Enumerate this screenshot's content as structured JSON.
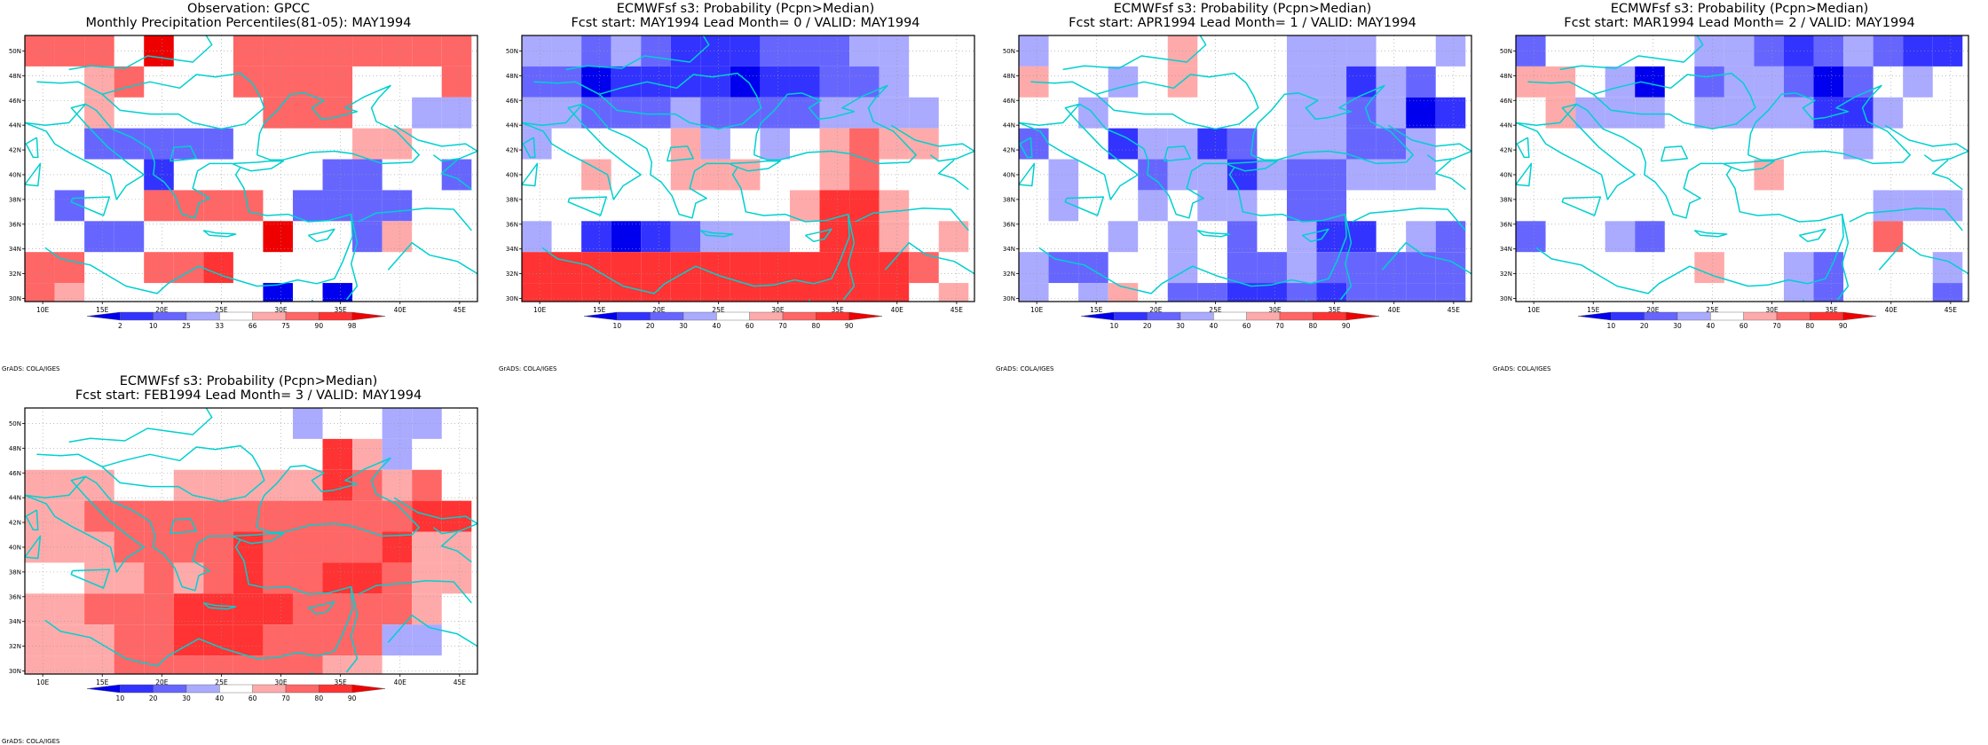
{
  "colors": {
    "neg": [
      "#0000ee",
      "#3333ff",
      "#6666ff",
      "#aaaaff"
    ],
    "pos": [
      "#ffaaaa",
      "#ff6666",
      "#ff3333",
      "#ee0000"
    ],
    "coast": "#00d0d0",
    "grid": "#999999"
  },
  "credit": "GrADS: COLA/IGES",
  "chart_data": [
    {
      "type": "heatmap",
      "title": "Observation: GPCC",
      "subtitle": "Monthly Precipitation Percentiles(81-05): MAY1994",
      "lon_ticks": [
        "10E",
        "15E",
        "20E",
        "25E",
        "30E",
        "35E",
        "40E",
        "45E"
      ],
      "lat_ticks": [
        "30N",
        "32N",
        "34N",
        "36N",
        "38N",
        "40N",
        "42N",
        "44N",
        "46N",
        "48N",
        "50N"
      ],
      "colorbar_labels": [
        "2",
        "10",
        "25",
        "33",
        "66",
        "75",
        "90",
        "98"
      ],
      "x_range": [
        8.5,
        46.5
      ],
      "y_range": [
        29.75,
        51.25
      ],
      "cell_size_deg": 2.5,
      "grid_note": "category levels: -4..-1 = below-normal classes (blue), 0 = white, 1..4 = above-normal classes (red)",
      "grid": [
        [
          2,
          2,
          2,
          0,
          4,
          0,
          0,
          2,
          2,
          2,
          2,
          2,
          2,
          2,
          2
        ],
        [
          0,
          0,
          1,
          2,
          0,
          0,
          0,
          2,
          2,
          2,
          2,
          0,
          0,
          0,
          2
        ],
        [
          0,
          0,
          1,
          0,
          0,
          0,
          0,
          0,
          2,
          2,
          2,
          0,
          0,
          -1,
          -1
        ],
        [
          0,
          0,
          -2,
          -2,
          -2,
          -2,
          -2,
          0,
          0,
          0,
          0,
          1,
          1,
          0,
          0
        ],
        [
          0,
          0,
          0,
          0,
          -3,
          0,
          0,
          0,
          0,
          0,
          -2,
          -2,
          0,
          0,
          -2
        ],
        [
          0,
          -2,
          0,
          0,
          2,
          2,
          2,
          2,
          0,
          -2,
          -2,
          -2,
          -2,
          0,
          0
        ],
        [
          0,
          0,
          -2,
          -2,
          0,
          0,
          0,
          0,
          4,
          0,
          0,
          -2,
          1,
          0,
          0
        ],
        [
          2,
          2,
          0,
          0,
          2,
          2,
          3,
          0,
          0,
          0,
          0,
          0,
          0,
          0,
          0
        ],
        [
          2,
          1,
          0,
          0,
          0,
          0,
          0,
          0,
          -4,
          0,
          -4,
          0,
          0,
          0,
          0
        ]
      ]
    },
    {
      "type": "heatmap",
      "title": "ECMWFsf s3: Probability (Pcpn>Median)",
      "subtitle": "Fcst start: MAY1994   Lead Month= 0 / VALID: MAY1994",
      "lon_ticks": [
        "10E",
        "15E",
        "20E",
        "25E",
        "30E",
        "35E",
        "40E",
        "45E"
      ],
      "lat_ticks": [
        "30N",
        "32N",
        "34N",
        "36N",
        "38N",
        "40N",
        "42N",
        "44N",
        "46N",
        "48N",
        "50N"
      ],
      "colorbar_labels": [
        "10",
        "20",
        "30",
        "40",
        "60",
        "70",
        "80",
        "90"
      ],
      "x_range": [
        8.5,
        46.5
      ],
      "y_range": [
        29.75,
        51.25
      ],
      "cell_size_deg": 2.5,
      "grid": [
        [
          -1,
          -1,
          -2,
          -1,
          -2,
          -3,
          -3,
          -3,
          -2,
          -2,
          -2,
          -1,
          -1,
          0,
          0
        ],
        [
          -2,
          -2,
          -4,
          -3,
          -3,
          -3,
          -3,
          -4,
          -3,
          -3,
          -2,
          -2,
          -1,
          0,
          0
        ],
        [
          -1,
          -1,
          -2,
          -2,
          -2,
          -1,
          -2,
          -2,
          -2,
          -2,
          -1,
          -1,
          -1,
          -1,
          0
        ],
        [
          -1,
          0,
          0,
          0,
          0,
          1,
          -1,
          0,
          -1,
          0,
          1,
          2,
          1,
          1,
          0
        ],
        [
          0,
          0,
          1,
          0,
          0,
          1,
          1,
          1,
          0,
          0,
          1,
          2,
          0,
          0,
          0
        ],
        [
          0,
          0,
          0,
          0,
          0,
          0,
          0,
          0,
          0,
          1,
          3,
          3,
          1,
          0,
          0
        ],
        [
          -1,
          0,
          -3,
          -4,
          -3,
          -2,
          -1,
          -1,
          -1,
          0,
          3,
          3,
          1,
          0,
          1
        ],
        [
          3,
          3,
          3,
          3,
          3,
          3,
          3,
          3,
          3,
          3,
          3,
          3,
          3,
          2,
          0
        ],
        [
          3,
          3,
          3,
          3,
          3,
          3,
          3,
          3,
          3,
          3,
          3,
          3,
          3,
          0,
          1
        ]
      ]
    },
    {
      "type": "heatmap",
      "title": "ECMWFsf s3: Probability (Pcpn>Median)",
      "subtitle": "Fcst start: APR1994   Lead Month= 1 / VALID: MAY1994",
      "lon_ticks": [
        "10E",
        "15E",
        "20E",
        "25E",
        "30E",
        "35E",
        "40E",
        "45E"
      ],
      "lat_ticks": [
        "30N",
        "32N",
        "34N",
        "36N",
        "38N",
        "40N",
        "42N",
        "44N",
        "46N",
        "48N",
        "50N"
      ],
      "colorbar_labels": [
        "10",
        "20",
        "30",
        "40",
        "60",
        "70",
        "80",
        "90"
      ],
      "x_range": [
        8.5,
        46.5
      ],
      "y_range": [
        29.75,
        51.25
      ],
      "cell_size_deg": 2.5,
      "grid": [
        [
          -1,
          0,
          0,
          0,
          0,
          1,
          0,
          0,
          0,
          -1,
          -1,
          -1,
          0,
          0,
          -1
        ],
        [
          1,
          0,
          0,
          -1,
          0,
          1,
          0,
          0,
          0,
          -1,
          -1,
          -3,
          -1,
          -2,
          0
        ],
        [
          0,
          0,
          -1,
          0,
          0,
          0,
          0,
          0,
          0,
          -1,
          -1,
          -2,
          -1,
          -4,
          -3
        ],
        [
          -2,
          0,
          0,
          -3,
          -1,
          -1,
          -3,
          -2,
          0,
          -1,
          -1,
          -2,
          -2,
          -1,
          0
        ],
        [
          0,
          -1,
          0,
          0,
          -2,
          -1,
          -1,
          -3,
          -1,
          -2,
          -2,
          -1,
          -1,
          -1,
          0
        ],
        [
          0,
          -1,
          0,
          0,
          -1,
          0,
          -1,
          -1,
          0,
          -2,
          -2,
          0,
          0,
          0,
          0
        ],
        [
          0,
          0,
          0,
          -1,
          0,
          -1,
          0,
          -2,
          0,
          -1,
          -3,
          -3,
          0,
          -1,
          -2
        ],
        [
          -1,
          -2,
          -2,
          0,
          0,
          -1,
          0,
          -2,
          -2,
          -1,
          -2,
          -2,
          -2,
          -2,
          -2
        ],
        [
          -1,
          0,
          -1,
          1,
          0,
          -2,
          -2,
          -3,
          -3,
          -2,
          -3,
          -2,
          -2,
          -2,
          -2
        ]
      ]
    },
    {
      "type": "heatmap",
      "title": "ECMWFsf s3: Probability (Pcpn>Median)",
      "subtitle": "Fcst start: MAR1994   Lead Month= 2 / VALID: MAY1994",
      "lon_ticks": [
        "10E",
        "15E",
        "20E",
        "25E",
        "30E",
        "35E",
        "40E",
        "45E"
      ],
      "lat_ticks": [
        "30N",
        "32N",
        "34N",
        "36N",
        "38N",
        "40N",
        "42N",
        "44N",
        "46N",
        "48N",
        "50N"
      ],
      "colorbar_labels": [
        "10",
        "20",
        "30",
        "40",
        "60",
        "70",
        "80",
        "90"
      ],
      "x_range": [
        8.5,
        46.5
      ],
      "y_range": [
        29.75,
        51.25
      ],
      "cell_size_deg": 2.5,
      "grid": [
        [
          -2,
          0,
          0,
          0,
          0,
          0,
          -1,
          -1,
          -2,
          -3,
          -2,
          -1,
          -2,
          -3,
          -3
        ],
        [
          1,
          1,
          0,
          -1,
          -4,
          0,
          -2,
          -1,
          -1,
          -2,
          -4,
          -2,
          0,
          -1,
          0
        ],
        [
          0,
          1,
          -1,
          -1,
          -1,
          0,
          -1,
          -1,
          -1,
          -1,
          -3,
          -3,
          -1,
          0,
          0
        ],
        [
          0,
          0,
          0,
          0,
          0,
          0,
          0,
          0,
          0,
          0,
          0,
          -1,
          0,
          0,
          0
        ],
        [
          0,
          0,
          0,
          0,
          0,
          0,
          0,
          0,
          1,
          0,
          0,
          0,
          0,
          0,
          0
        ],
        [
          0,
          0,
          0,
          0,
          0,
          0,
          0,
          0,
          0,
          0,
          0,
          0,
          -1,
          -1,
          -1
        ],
        [
          -2,
          0,
          0,
          -1,
          -2,
          0,
          0,
          0,
          0,
          0,
          0,
          0,
          2,
          0,
          0
        ],
        [
          0,
          0,
          0,
          0,
          0,
          0,
          1,
          0,
          0,
          -1,
          -2,
          0,
          0,
          0,
          -1
        ],
        [
          0,
          0,
          0,
          0,
          0,
          0,
          0,
          0,
          0,
          -1,
          -2,
          0,
          0,
          0,
          -2
        ]
      ]
    },
    {
      "type": "heatmap",
      "title": "ECMWFsf s3: Probability (Pcpn>Median)",
      "subtitle": "Fcst start: FEB1994   Lead Month= 3 / VALID: MAY1994",
      "lon_ticks": [
        "10E",
        "15E",
        "20E",
        "25E",
        "30E",
        "35E",
        "40E",
        "45E"
      ],
      "lat_ticks": [
        "30N",
        "32N",
        "34N",
        "36N",
        "38N",
        "40N",
        "42N",
        "44N",
        "46N",
        "48N",
        "50N"
      ],
      "colorbar_labels": [
        "10",
        "20",
        "30",
        "40",
        "60",
        "70",
        "80",
        "90"
      ],
      "x_range": [
        8.5,
        46.5
      ],
      "y_range": [
        29.75,
        51.25
      ],
      "cell_size_deg": 2.5,
      "grid": [
        [
          0,
          0,
          0,
          0,
          0,
          0,
          0,
          0,
          0,
          -1,
          0,
          0,
          -1,
          -1,
          0
        ],
        [
          0,
          0,
          0,
          0,
          0,
          0,
          0,
          0,
          0,
          0,
          3,
          1,
          -1,
          0,
          0
        ],
        [
          1,
          1,
          1,
          0,
          0,
          1,
          1,
          1,
          1,
          1,
          3,
          2,
          1,
          2,
          0
        ],
        [
          1,
          1,
          2,
          2,
          2,
          2,
          2,
          2,
          2,
          2,
          2,
          2,
          2,
          3,
          3
        ],
        [
          1,
          1,
          1,
          2,
          2,
          2,
          2,
          3,
          2,
          2,
          2,
          2,
          3,
          1,
          1
        ],
        [
          0,
          0,
          1,
          1,
          2,
          1,
          2,
          3,
          2,
          2,
          3,
          3,
          2,
          1,
          1
        ],
        [
          1,
          1,
          2,
          2,
          2,
          3,
          3,
          3,
          3,
          2,
          2,
          2,
          2,
          1,
          0
        ],
        [
          1,
          1,
          1,
          2,
          2,
          3,
          3,
          3,
          2,
          2,
          2,
          2,
          -1,
          -1,
          0
        ],
        [
          1,
          1,
          1,
          2,
          2,
          2,
          2,
          2,
          2,
          2,
          1,
          1,
          0,
          0,
          0
        ]
      ]
    }
  ]
}
